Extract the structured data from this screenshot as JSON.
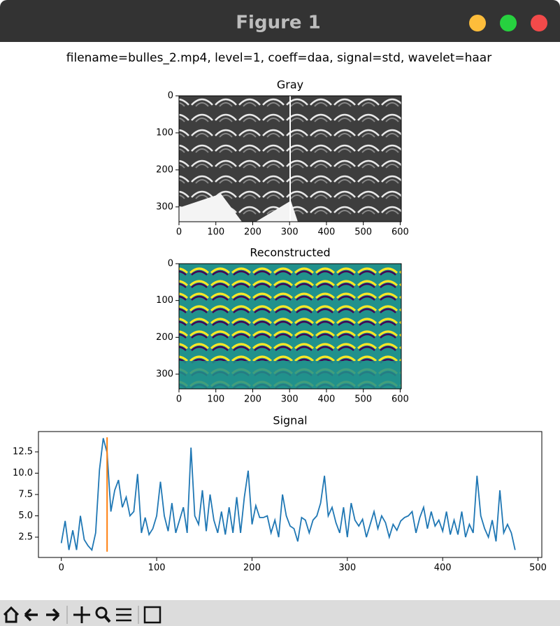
{
  "window": {
    "title": "Figure 1"
  },
  "suptitle": "filename=bulles_2.mp4, level=1, coeff=daa, signal=std, wavelet=haar",
  "chart_data": [
    {
      "type": "image",
      "title": "Gray",
      "colormap": "gray",
      "xlim": [
        0,
        603
      ],
      "ylim": [
        340,
        0
      ],
      "xticks": [
        0,
        100,
        200,
        300,
        400,
        500,
        600
      ],
      "yticks": [
        0,
        100,
        200,
        300
      ]
    },
    {
      "type": "image",
      "title": "Reconstructed",
      "colormap": "viridis",
      "xlim": [
        0,
        603
      ],
      "ylim": [
        340,
        0
      ],
      "xticks": [
        0,
        100,
        200,
        300,
        400,
        500,
        600
      ],
      "yticks": [
        0,
        100,
        200,
        300
      ]
    },
    {
      "type": "line",
      "title": "Signal",
      "xlim": [
        -24,
        504
      ],
      "ylim": [
        0.12,
        14.88
      ],
      "xticks": [
        0,
        100,
        200,
        300,
        400,
        500
      ],
      "yticks": [
        2.5,
        {
          "value": 5,
          "label": "5.0"
        },
        7.5,
        {
          "value": 10,
          "label": "10.0"
        },
        12.5
      ],
      "x": [
        0,
        4,
        8,
        12,
        16,
        20,
        24,
        28,
        32,
        36,
        40,
        44,
        48,
        52,
        56,
        60,
        64,
        68,
        72,
        76,
        80,
        84,
        88,
        92,
        96,
        100,
        104,
        108,
        112,
        116,
        120,
        124,
        128,
        132,
        136,
        140,
        144,
        148,
        152,
        156,
        160,
        164,
        168,
        172,
        176,
        180,
        184,
        188,
        192,
        196,
        200,
        204,
        208,
        212,
        216,
        220,
        224,
        228,
        232,
        236,
        240,
        244,
        248,
        252,
        256,
        260,
        264,
        268,
        272,
        276,
        280,
        284,
        288,
        292,
        296,
        300,
        304,
        308,
        312,
        316,
        320,
        324,
        328,
        332,
        336,
        340,
        344,
        348,
        352,
        356,
        360,
        364,
        368,
        372,
        376,
        380,
        384,
        388,
        392,
        396,
        400,
        404,
        408,
        412,
        416,
        420,
        424,
        428,
        432,
        436,
        440,
        444,
        448,
        452,
        456,
        460,
        464,
        468,
        472,
        476
      ],
      "series": [
        {
          "color": "#1f77b4",
          "values": [
            1.8,
            4.4,
            1.0,
            3.3,
            1.0,
            5.0,
            2.2,
            1.5,
            1.0,
            3.0,
            10.4,
            14.1,
            12.4,
            5.5,
            8.0,
            9.2,
            6.0,
            7.2,
            5.0,
            5.5,
            9.9,
            3.0,
            4.8,
            2.8,
            3.5,
            5.0,
            9.0,
            5.0,
            3.2,
            6.5,
            3.0,
            4.5,
            6.0,
            3.0,
            13.0,
            5.0,
            4.0,
            8.0,
            3.2,
            7.5,
            4.5,
            3.0,
            5.5,
            2.8,
            6.0,
            3.0,
            7.2,
            3.0,
            7.2,
            10.3,
            4.0,
            6.2,
            4.8,
            4.8,
            5.0,
            3.0,
            4.5,
            2.5,
            7.5,
            5.0,
            3.8,
            3.5,
            2.0,
            4.8,
            4.5,
            3.0,
            4.5,
            5.0,
            6.5,
            9.7,
            5.0,
            6.0,
            4.2,
            3.0,
            6.0,
            2.5,
            6.5,
            4.5,
            3.8,
            4.6,
            2.5,
            4.0,
            5.5,
            3.5,
            5.0,
            4.2,
            2.5,
            4.0,
            3.3,
            4.4,
            4.8,
            5.0,
            5.5,
            3.0,
            4.8,
            6.0,
            3.5,
            5.5,
            3.8,
            4.5,
            3.2,
            5.5,
            2.8,
            4.5,
            2.8,
            5.5,
            2.5,
            4.0,
            3.0,
            9.7,
            5.0,
            3.5,
            2.5,
            4.5,
            2.0,
            8.0,
            3.0,
            4.0,
            3.0,
            1.0
          ]
        }
      ],
      "vline": {
        "x": 48,
        "ymin": 0.8,
        "ymax": 14.2,
        "color": "#ff7f0e"
      }
    }
  ]
}
